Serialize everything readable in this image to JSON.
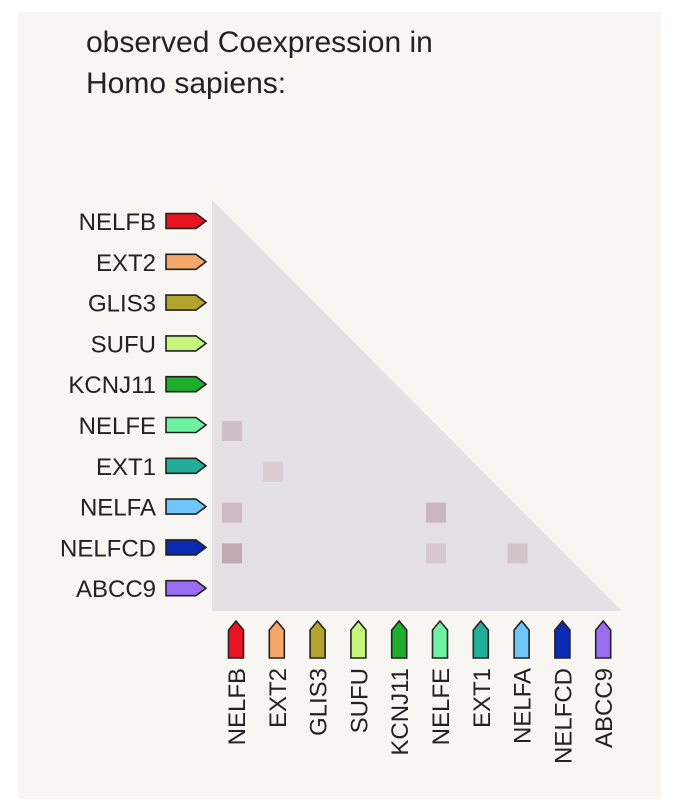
{
  "title_line1": "observed Coexpression in",
  "title_line2": "Homo sapiens:",
  "chart_data": {
    "type": "heatmap",
    "title": "observed Coexpression in Homo sapiens:",
    "genes": [
      {
        "name": "NELFB",
        "color": "#e8141f"
      },
      {
        "name": "EXT2",
        "color": "#f5a86a"
      },
      {
        "name": "GLIS3",
        "color": "#b2a42e"
      },
      {
        "name": "SUFU",
        "color": "#c7f57a"
      },
      {
        "name": "KCNJ11",
        "color": "#1fad2e"
      },
      {
        "name": "NELFE",
        "color": "#6ff2a0"
      },
      {
        "name": "EXT1",
        "color": "#23ad9b"
      },
      {
        "name": "NELFA",
        "color": "#6fc5f7"
      },
      {
        "name": "NELFCD",
        "color": "#0a2bb2"
      },
      {
        "name": "ABCC9",
        "color": "#9a6cf2"
      }
    ],
    "cells": [
      {
        "row": "NELFE",
        "col": "NELFB",
        "value": 0.35
      },
      {
        "row": "EXT1",
        "col": "EXT2",
        "value": 0.2
      },
      {
        "row": "NELFA",
        "col": "NELFB",
        "value": 0.4
      },
      {
        "row": "NELFA",
        "col": "NELFE",
        "value": 0.45
      },
      {
        "row": "NELFCD",
        "col": "NELFB",
        "value": 0.6
      },
      {
        "row": "NELFCD",
        "col": "NELFE",
        "value": 0.25
      },
      {
        "row": "NELFCD",
        "col": "NELFA",
        "value": 0.3
      }
    ],
    "background_color": "#e5e0e4",
    "cell_color": "#a9838e"
  }
}
